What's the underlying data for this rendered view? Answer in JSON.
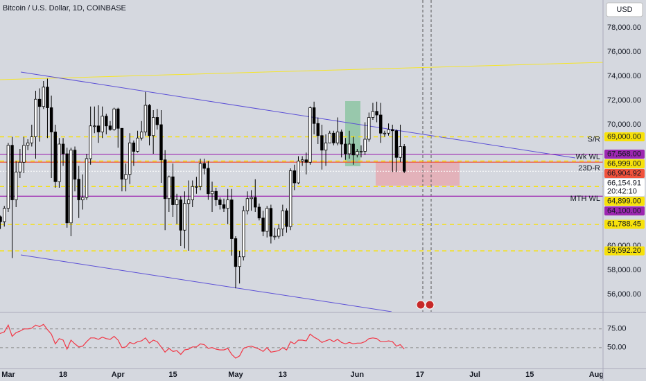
{
  "chart_data": {
    "type": "candlestick",
    "title": "Bitcoin / U.S. Dollar, 1D, COINBASE",
    "currency": "USD",
    "up_color": "#ffffff",
    "down_color": "#000000",
    "open": [
      61100,
      62400,
      62000,
      63100,
      68300,
      63800,
      66100,
      66900,
      68300,
      68500,
      69000,
      72100,
      71500,
      73100,
      71400,
      69400,
      65300,
      68400,
      67600,
      61900,
      67900,
      65500,
      63800,
      64000,
      67200,
      69900,
      69900,
      69400,
      70700,
      69900,
      69600,
      71300,
      69700,
      65500,
      65900,
      68500,
      67800,
      68900,
      69400,
      71600,
      69100,
      70600,
      70000,
      67100,
      63900,
      65700,
      63400,
      63800,
      61300,
      63500,
      63800,
      64900,
      64900,
      66800,
      66400,
      64300,
      64500,
      63800,
      63400,
      63100,
      63800,
      60600,
      58300,
      59100,
      62900,
      63900,
      64000,
      63200,
      62300,
      61200,
      63100,
      60800,
      60800,
      61400,
      62900,
      61600,
      66200,
      65200,
      67000,
      67100,
      66900,
      71400,
      70100,
      69100,
      67900,
      68500,
      69300,
      68500,
      69400,
      68400,
      67600,
      68400,
      67500,
      67800,
      67800,
      68800,
      70600,
      71100,
      70800,
      69300,
      69300,
      69600,
      69500,
      67300,
      68200
    ],
    "high": [
      63200,
      62500,
      63300,
      68500,
      69000,
      67000,
      68000,
      69000,
      68800,
      70000,
      72800,
      73000,
      73600,
      73800,
      72400,
      70000,
      68900,
      68900,
      68100,
      68100,
      68200,
      66600,
      65900,
      67600,
      71500,
      71500,
      71600,
      71500,
      70900,
      70300,
      71400,
      71400,
      69700,
      66800,
      69300,
      68700,
      69500,
      70300,
      72700,
      71700,
      71200,
      71300,
      71200,
      67900,
      65800,
      66800,
      64300,
      64100,
      64500,
      65400,
      65400,
      65700,
      67200,
      67200,
      67000,
      65300,
      64800,
      64000,
      63900,
      64700,
      64700,
      60800,
      59600,
      63300,
      64500,
      64600,
      65500,
      63500,
      62900,
      63300,
      63400,
      61500,
      61800,
      63400,
      63100,
      66400,
      66700,
      67400,
      67400,
      67700,
      71500,
      71900,
      70600,
      70000,
      69200,
      69500,
      69500,
      70600,
      69600,
      68900,
      69500,
      69000,
      68000,
      68300,
      70200,
      71000,
      71800,
      71900,
      71800,
      69500,
      70100,
      70000,
      69600,
      70000,
      68400
    ],
    "low": [
      60800,
      61400,
      61600,
      62800,
      59000,
      63200,
      65600,
      66000,
      67900,
      68200,
      67200,
      68600,
      71300,
      68900,
      65600,
      64800,
      64800,
      66600,
      61500,
      60800,
      64500,
      62300,
      63000,
      63800,
      66700,
      69300,
      68500,
      68900,
      69200,
      69500,
      69500,
      68100,
      64500,
      64500,
      65100,
      66600,
      67700,
      68700,
      69100,
      68300,
      67600,
      69600,
      65200,
      61300,
      62800,
      62400,
      61800,
      60000,
      59800,
      59600,
      63200,
      64300,
      64600,
      65900,
      63800,
      62800,
      63300,
      63000,
      62800,
      61800,
      59200,
      56500,
      56900,
      58800,
      62600,
      62900,
      62800,
      62100,
      60800,
      60700,
      60200,
      60500,
      60600,
      60800,
      61100,
      61300,
      64600,
      65100,
      66600,
      65900,
      66700,
      69200,
      68400,
      66300,
      66600,
      68500,
      68300,
      68300,
      67300,
      67100,
      67200,
      66700,
      67300,
      67300,
      67500,
      68600,
      70400,
      70200,
      68500,
      69000,
      69100,
      66100,
      66100,
      66900,
      66000
    ],
    "close": [
      62400,
      62000,
      63100,
      68300,
      63800,
      66100,
      66900,
      68300,
      68500,
      69000,
      72100,
      71500,
      73100,
      71400,
      69400,
      65300,
      68400,
      67600,
      61900,
      67900,
      65500,
      63800,
      64000,
      67200,
      69900,
      69900,
      69400,
      70700,
      69900,
      69600,
      71300,
      69700,
      65500,
      65900,
      68500,
      67800,
      68900,
      69400,
      71600,
      69100,
      70600,
      70000,
      67100,
      63900,
      65700,
      63400,
      63800,
      61300,
      63500,
      63800,
      64900,
      64900,
      66800,
      66400,
      64300,
      64500,
      63800,
      63400,
      63100,
      63800,
      60600,
      58300,
      59100,
      62900,
      63900,
      64000,
      63200,
      62300,
      61200,
      63100,
      60800,
      60800,
      61400,
      62900,
      61600,
      66200,
      65200,
      67000,
      67100,
      66900,
      71400,
      70100,
      69100,
      67900,
      68500,
      69300,
      68500,
      69400,
      68400,
      67600,
      68400,
      67500,
      67800,
      67800,
      68800,
      70600,
      71100,
      70800,
      69300,
      69300,
      69600,
      69500,
      67300,
      68200,
      66155
    ],
    "xlim": [
      0.9,
      154.7
    ],
    "xticks": [
      {
        "value": 0,
        "label": "Mar"
      },
      {
        "value": 17,
        "label": "18"
      },
      {
        "value": 31,
        "label": "Apr"
      },
      {
        "value": 45,
        "label": "15"
      },
      {
        "value": 61,
        "label": "May"
      },
      {
        "value": 73,
        "label": "13"
      },
      {
        "value": 92,
        "label": "Jun"
      },
      {
        "value": 108,
        "label": "17"
      },
      {
        "value": 122,
        "label": "Jul"
      },
      {
        "value": 136,
        "label": "15"
      },
      {
        "value": 153,
        "label": "Aug"
      }
    ],
    "ylim": [
      54571,
      80286
    ],
    "yticks": [
      {
        "value": 56000,
        "label": "56,000.00"
      },
      {
        "value": 58000,
        "label": "58,000.00"
      },
      {
        "value": 60000,
        "label": "60,000.00"
      },
      {
        "value": 70000,
        "label": "70,000.00"
      },
      {
        "value": 72000,
        "label": "72,000.00"
      },
      {
        "value": 74000,
        "label": "74,000.00"
      },
      {
        "value": 76000,
        "label": "76,000.00"
      },
      {
        "value": 78000,
        "label": "78,000.00"
      }
    ],
    "levels": [
      {
        "value": 69000,
        "label": "69,000.00",
        "color": "#f7e10a",
        "style": "dashed",
        "tag": "S/R"
      },
      {
        "value": 67568,
        "label": "67,568.00",
        "color": "#9c27b0",
        "style": "solid",
        "tag": "Wk WL"
      },
      {
        "value": 66999,
        "label": "66,999.00",
        "color": "#f7e10a",
        "style": "dashed"
      },
      {
        "value": 66904.92,
        "label": "66,904.92",
        "color": "#f0523c",
        "style": "solid"
      },
      {
        "value": 64899,
        "label": "64,899.00",
        "color": "#f7e10a",
        "style": "dashed"
      },
      {
        "value": 64100,
        "label": "64,100.00",
        "color": "#9c27b0",
        "style": "solid",
        "tag": "MTH WL"
      },
      {
        "value": 61788.45,
        "label": "61,788.45",
        "color": "#f7e10a",
        "style": "dashed"
      },
      {
        "value": 59592.2,
        "label": "59,592.20",
        "color": "#f7e10a",
        "style": "dashed"
      }
    ],
    "current": {
      "value": 66154.91,
      "label": "66,154.91",
      "countdown": "20:42:10",
      "tag": "23D-R"
    },
    "rsi": {
      "color": "#f23645",
      "ylim": [
        24,
        96
      ],
      "yticks": [
        {
          "value": 75,
          "label": "75.00"
        },
        {
          "value": 50,
          "label": "50.00"
        }
      ],
      "values": [
        70,
        69,
        71,
        80,
        65,
        70,
        72,
        75,
        75,
        76,
        80,
        78,
        81,
        74,
        68,
        55,
        62,
        60,
        48,
        60,
        55,
        51,
        52,
        58,
        63,
        63,
        61,
        64,
        62,
        61,
        65,
        60,
        50,
        51,
        57,
        55,
        58,
        59,
        63,
        56,
        60,
        58,
        51,
        44,
        49,
        45,
        46,
        41,
        47,
        48,
        51,
        51,
        55,
        54,
        49,
        50,
        48,
        47,
        47,
        49,
        41,
        36,
        39,
        49,
        51,
        52,
        50,
        48,
        45,
        50,
        44,
        45,
        46,
        50,
        47,
        58,
        55,
        60,
        60,
        59,
        68,
        64,
        61,
        57,
        59,
        61,
        58,
        61,
        57,
        55,
        57,
        55,
        56,
        56,
        58,
        62,
        63,
        62,
        58,
        58,
        59,
        58,
        52,
        54,
        48
      ]
    }
  }
}
